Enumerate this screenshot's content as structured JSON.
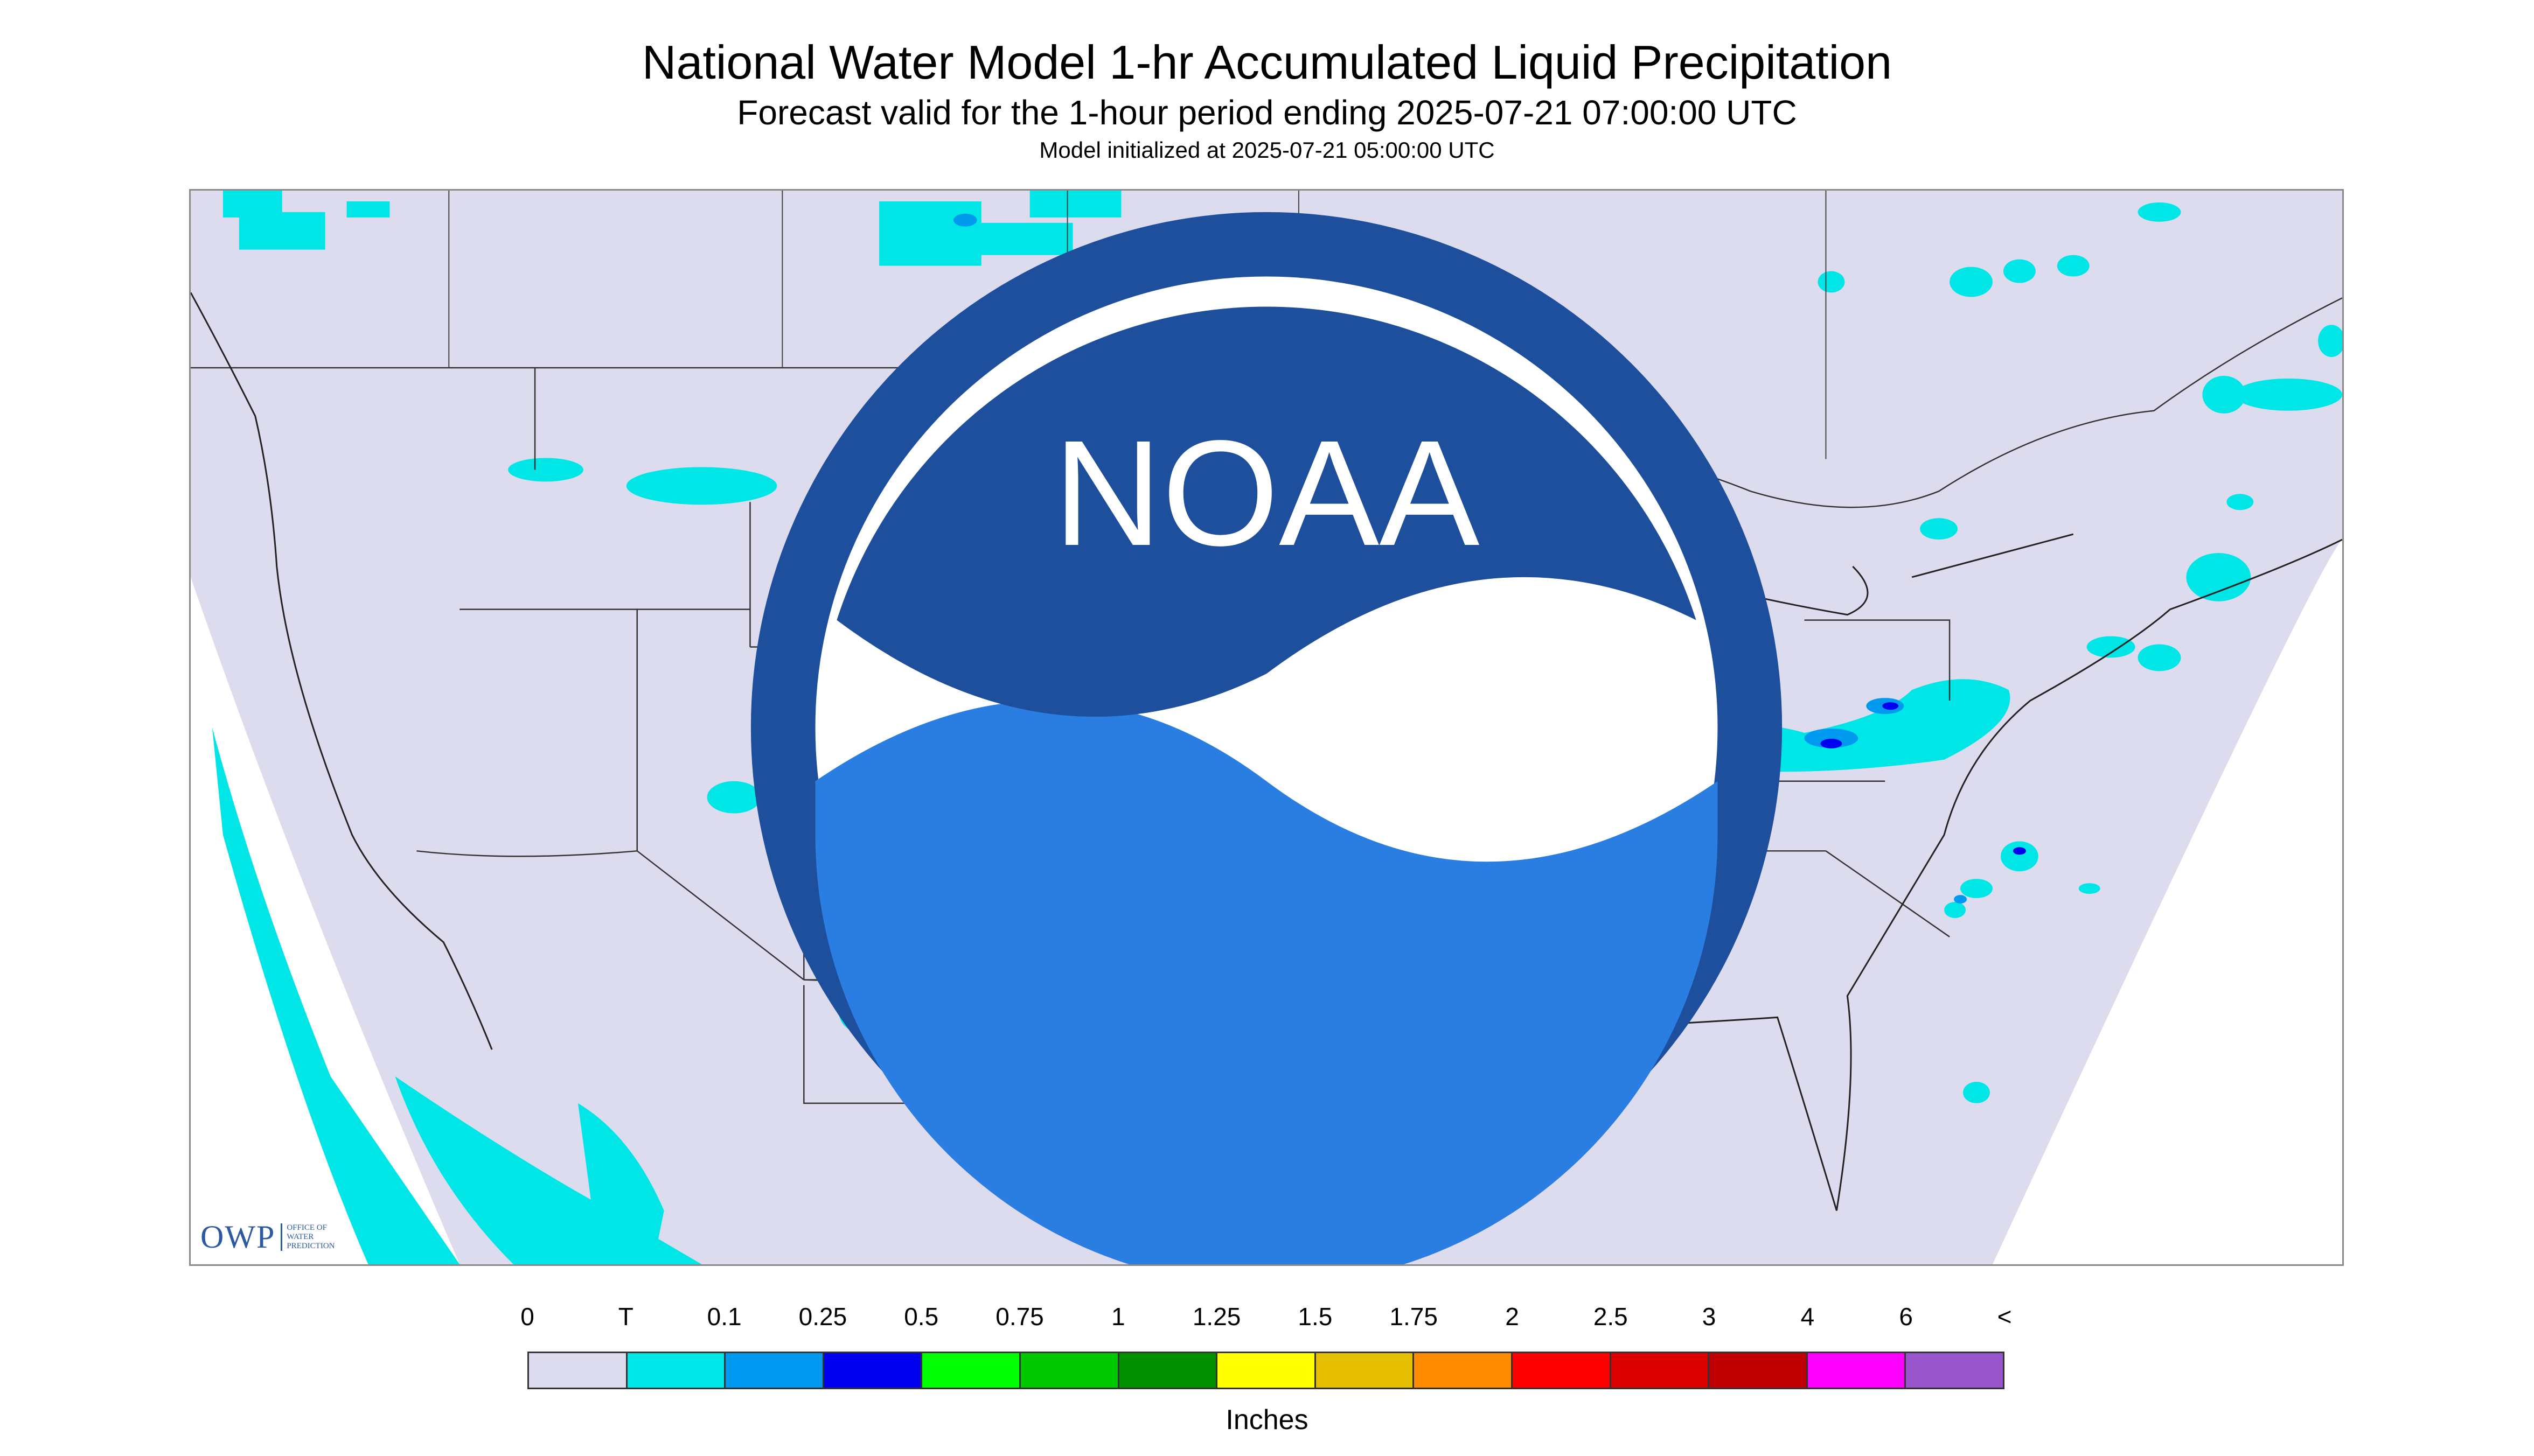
{
  "header": {
    "title": "National Water Model 1-hr Accumulated Liquid Precipitation",
    "subtitle": "Forecast valid for the 1-hour period ending 2025-07-21 07:00:00 UTC",
    "init_line": "Model initialized at 2025-07-21 05:00:00 UTC"
  },
  "map": {
    "region": "Continental United States",
    "background_color": "#dcdcee",
    "outside_domain_color": "#ffffff",
    "boundary_color": "#333333",
    "logos": {
      "owp_text": "OWP",
      "owp_subtext": [
        "Office of",
        "Water",
        "Prediction"
      ],
      "noaa_icon": "noaa-icon",
      "noaa_text": "NOAA"
    }
  },
  "legend": {
    "labels": [
      "0",
      "T",
      "0.1",
      "0.25",
      "0.5",
      "0.75",
      "1",
      "1.25",
      "1.5",
      "1.75",
      "2",
      "2.5",
      "3",
      "4",
      "6",
      "<"
    ],
    "colors": [
      "#dcdcee",
      "#00e6e6",
      "#0099f0",
      "#0000ee",
      "#00ff00",
      "#00c800",
      "#009000",
      "#ffff00",
      "#e6c000",
      "#ff8c00",
      "#ff0000",
      "#dc0000",
      "#c00000",
      "#ff00ff",
      "#9955cc"
    ],
    "units": "Inches"
  }
}
